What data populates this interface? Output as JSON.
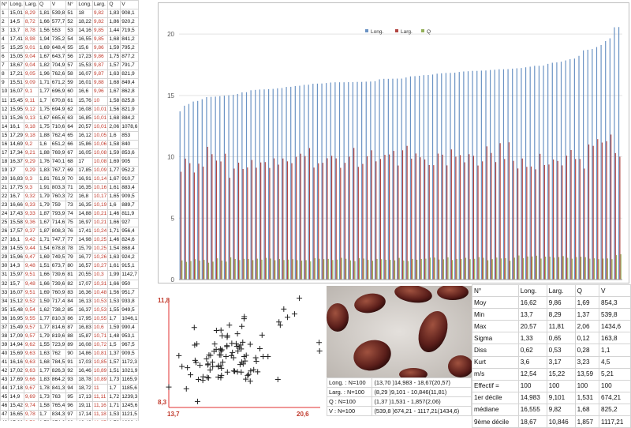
{
  "measurements": {
    "headers": [
      "N°",
      "Long.",
      "Larg.",
      "Q",
      "V",
      "N°",
      "Long.",
      "Larg.",
      "Q",
      "V"
    ],
    "rows": [
      [
        "1",
        "15,01",
        "8,29",
        "1,81",
        "539,8",
        "51",
        "18",
        "9,82",
        "1,83",
        "908,1"
      ],
      [
        "2",
        "14,5",
        "8,72",
        "1,66",
        "577,7",
        "52",
        "18,22",
        "9,82",
        "1,86",
        "920,2"
      ],
      [
        "3",
        "13,7",
        "8,78",
        "1,56",
        "553",
        "53",
        "14,16",
        "9,85",
        "1,44",
        "719,5"
      ],
      [
        "4",
        "17,41",
        "8,98",
        "1,94",
        "735,2",
        "54",
        "16,55",
        "9,85",
        "1,68",
        "841,2"
      ],
      [
        "5",
        "15,25",
        "9,01",
        "1,69",
        "648,4",
        "55",
        "15,6",
        "9,86",
        "1,59",
        "795,2"
      ],
      [
        "6",
        "15,05",
        "9,04",
        "1,67",
        "643,7",
        "56",
        "17,23",
        "9,86",
        "1,75",
        "877,2"
      ],
      [
        "7",
        "18,67",
        "9,04",
        "1,82",
        "704,9",
        "57",
        "15,53",
        "9,87",
        "1,57",
        "791,7"
      ],
      [
        "8",
        "17,21",
        "9,05",
        "1,96",
        "762,6",
        "58",
        "16,07",
        "9,87",
        "1,63",
        "821,9"
      ],
      [
        "9",
        "15,51",
        "9,09",
        "1,71",
        "671,2",
        "59",
        "16,01",
        "9,88",
        "1,68",
        "849,4"
      ],
      [
        "10",
        "16,07",
        "9,1",
        "1,77",
        "696,9",
        "60",
        "16,6",
        "9,96",
        "1,67",
        "862,8"
      ],
      [
        "11",
        "15,45",
        "9,11",
        "1,7",
        "670,8",
        "61",
        "15,76",
        "10",
        "1,58",
        "825,8"
      ],
      [
        "12",
        "15,95",
        "9,12",
        "1,75",
        "694,9",
        "62",
        "16,08",
        "10,01",
        "1,56",
        "821,9"
      ],
      [
        "13",
        "15,26",
        "9,13",
        "1,67",
        "665,6",
        "63",
        "16,85",
        "10,01",
        "1,68",
        "884,2"
      ],
      [
        "14",
        "16,1",
        "9,18",
        "1,75",
        "710,6",
        "64",
        "20,57",
        "10,01",
        "2,06",
        "1078,6"
      ],
      [
        "15",
        "17,29",
        "9,18",
        "1,88",
        "762,4",
        "65",
        "16,12",
        "10,05",
        "1,6",
        "853"
      ],
      [
        "16",
        "14,69",
        "9,2",
        "1,6",
        "651,2",
        "66",
        "15,86",
        "10,06",
        "1,58",
        "840"
      ],
      [
        "17",
        "17,34",
        "9,21",
        "1,88",
        "769,9",
        "67",
        "16,05",
        "10,08",
        "1,59",
        "853,6"
      ],
      [
        "18",
        "16,37",
        "9,29",
        "1,76",
        "740,1",
        "68",
        "17",
        "10,08",
        "1,69",
        "905"
      ],
      [
        "19",
        "17",
        "9,29",
        "1,83",
        "767,7",
        "69",
        "17,85",
        "10,09",
        "1,77",
        "952,2"
      ],
      [
        "20",
        "16,83",
        "9,3",
        "1,81",
        "761,9",
        "70",
        "16,91",
        "10,14",
        "1,67",
        "910,7"
      ],
      [
        "21",
        "17,75",
        "9,3",
        "1,91",
        "803,3",
        "71",
        "16,35",
        "10,16",
        "1,61",
        "883,4"
      ],
      [
        "22",
        "16,7",
        "9,32",
        "1,79",
        "760,3",
        "72",
        "16,8",
        "10,17",
        "1,65",
        "909,5"
      ],
      [
        "23",
        "16,66",
        "9,33",
        "1,79",
        "759",
        "73",
        "16,35",
        "10,19",
        "1,6",
        "889,7"
      ],
      [
        "24",
        "17,43",
        "9,33",
        "1,87",
        "793,9",
        "74",
        "14,88",
        "10,21",
        "1,46",
        "811,9"
      ],
      [
        "25",
        "15,58",
        "9,36",
        "1,67",
        "714,6",
        "75",
        "16,97",
        "10,21",
        "1,66",
        "927"
      ],
      [
        "26",
        "17,57",
        "9,37",
        "1,87",
        "808,3",
        "76",
        "17,41",
        "10,24",
        "1,71",
        "956,4"
      ],
      [
        "27",
        "16,1",
        "9,42",
        "1,71",
        "747,7",
        "77",
        "14,98",
        "10,25",
        "1,46",
        "824,6"
      ],
      [
        "28",
        "14,55",
        "9,44",
        "1,54",
        "678,8",
        "78",
        "15,79",
        "10,25",
        "1,54",
        "868,4"
      ],
      [
        "29",
        "15,96",
        "9,47",
        "1,69",
        "749,5",
        "79",
        "16,77",
        "10,26",
        "1,63",
        "924,2"
      ],
      [
        "30",
        "14,3",
        "9,48",
        "1,51",
        "673,7",
        "80",
        "16,57",
        "10,27",
        "1,61",
        "915,1"
      ],
      [
        "31",
        "15,97",
        "9,51",
        "1,66",
        "739,6",
        "81",
        "20,55",
        "10,3",
        "1,99",
        "1142,7"
      ],
      [
        "32",
        "15,7",
        "9,48",
        "1,66",
        "739,6",
        "82",
        "17,07",
        "10,31",
        "1,66",
        "950"
      ],
      [
        "33",
        "16,07",
        "9,51",
        "1,69",
        "760,9",
        "83",
        "16,36",
        "10,48",
        "1,56",
        "951,7"
      ],
      [
        "34",
        "15,12",
        "9,52",
        "1,59",
        "717,4",
        "84",
        "16,13",
        "10,53",
        "1,53",
        "933,8"
      ],
      [
        "35",
        "15,48",
        "9,54",
        "1,62",
        "738,2",
        "85",
        "16,37",
        "10,53",
        "1,55",
        "949,5"
      ],
      [
        "36",
        "16,95",
        "9,55",
        "1,77",
        "810,3",
        "86",
        "17,95",
        "10,55",
        "1,7",
        "1046,1"
      ],
      [
        "37",
        "15,49",
        "9,57",
        "1,77",
        "814,6",
        "87",
        "16,83",
        "10,6",
        "1,59",
        "990,4"
      ],
      [
        "38",
        "17,09",
        "9,57",
        "1,79",
        "819,6",
        "88",
        "15,87",
        "10,71",
        "1,48",
        "953,1"
      ],
      [
        "39",
        "14,94",
        "9,62",
        "1,55",
        "723,9",
        "89",
        "16,08",
        "10,72",
        "1,5",
        "967,5"
      ],
      [
        "40",
        "15,69",
        "9,63",
        "1,63",
        "762",
        "90",
        "14,86",
        "10,81",
        "1,37",
        "909,5"
      ],
      [
        "41",
        "16,16",
        "9,63",
        "1,68",
        "784,5",
        "91",
        "17,03",
        "10,85",
        "1,57",
        "1172,3"
      ],
      [
        "42",
        "17,02",
        "9,63",
        "1,77",
        "826,3",
        "92",
        "16,46",
        "10,89",
        "1,51",
        "1021,9"
      ],
      [
        "43",
        "17,69",
        "9,66",
        "1,83",
        "864,2",
        "93",
        "18,78",
        "10,89",
        "1,73",
        "1165,9"
      ],
      [
        "44",
        "17,18",
        "9,67",
        "1,78",
        "841,3",
        "94",
        "18,72",
        "11",
        "1,7",
        "1185,6"
      ],
      [
        "45",
        "14,9",
        "9,69",
        "1,73",
        "763",
        "95",
        "17,13",
        "11,11",
        "1,72",
        "1239,3"
      ],
      [
        "46",
        "15,42",
        "9,74",
        "1,58",
        "765,4",
        "96",
        "19,11",
        "11,16",
        "1,71",
        "1245,6"
      ],
      [
        "47",
        "16,65",
        "9,78",
        "1,7",
        "834,3",
        "97",
        "17,14",
        "11,18",
        "1,53",
        "1121,5"
      ],
      [
        "48",
        "17,66",
        "9,78",
        "1,78",
        "874,6",
        "98",
        "19,43",
        "11,27",
        "1,72",
        "1292,4"
      ],
      [
        "49",
        "16,31",
        "9,82",
        "1,66",
        "822,8",
        "99",
        "18,94",
        "11,44",
        "1,66",
        "1297,3"
      ],
      [
        "50",
        "17,13",
        "9,82",
        "1,74",
        "864,1",
        "100",
        "19,65",
        "11,81",
        "1,66",
        "1434,6"
      ]
    ]
  },
  "chart_data": [
    {
      "type": "bar",
      "legend": [
        "Long.",
        "Larg.",
        "Q"
      ],
      "legend_placement": "top-center",
      "colors": {
        "Long.": "#6b93c4",
        "Larg.": "#b24642",
        "Q": "#94b05a"
      },
      "yticks": [
        "0",
        "5",
        "10",
        "15",
        "20"
      ],
      "ylim": [
        0,
        22
      ],
      "grid": true
    },
    {
      "type": "scatter",
      "x_label_min": "13,7",
      "x_label_max": "20,6",
      "y_label_min": "8,3",
      "y_label_max": "11,8",
      "xlim": [
        13.7,
        20.6
      ],
      "ylim": [
        8.3,
        11.8
      ],
      "marker": "+",
      "marker_color": "#222222",
      "axis_color": "#e03030"
    }
  ],
  "ranges": [
    {
      "label": "Long. : N=100",
      "value": "(13,70 )14,983 - 18,67(20,57)"
    },
    {
      "label": "Larg. : N=100",
      "value": "(8,29 )9,101 - 10,846(11,81)"
    },
    {
      "label": "Q : N=100",
      "value": "(1,37 )1,531 - 1,857(2,06)"
    },
    {
      "label": "V : N=100",
      "value": "(539,8 )674,21 - 1117,21(1434,6)"
    }
  ],
  "stats": {
    "headers": [
      "N°",
      "Long.",
      "Larg.",
      "Q",
      "V"
    ],
    "rows": [
      [
        "Moy",
        "16,62",
        "9,86",
        "1,69",
        "854,3"
      ],
      [
        "Min",
        "13,7",
        "8,29",
        "1,37",
        "539,8"
      ],
      [
        "Max",
        "20,57",
        "11,81",
        "2,06",
        "1434,6"
      ],
      [
        "Sigma",
        "1,33",
        "0,65",
        "0,12",
        "163,8"
      ],
      [
        "Diss",
        "0,62",
        "0,53",
        "0,28",
        "1,1"
      ],
      [
        "Kurt",
        "3,6",
        "3,17",
        "3,23",
        "4,5"
      ],
      [
        "m/s",
        "12,54",
        "15,22",
        "13,59",
        "5,21"
      ],
      [
        "Effectif =",
        "100",
        "100",
        "100",
        "100"
      ],
      [
        "1er décile",
        "14,983",
        "9,101",
        "1,531",
        "674,21"
      ],
      [
        "médiane",
        "16,555",
        "9,82",
        "1,68",
        "825,2"
      ],
      [
        "9ème décile",
        "18,67",
        "10,846",
        "1,857",
        "1117,21"
      ]
    ]
  }
}
